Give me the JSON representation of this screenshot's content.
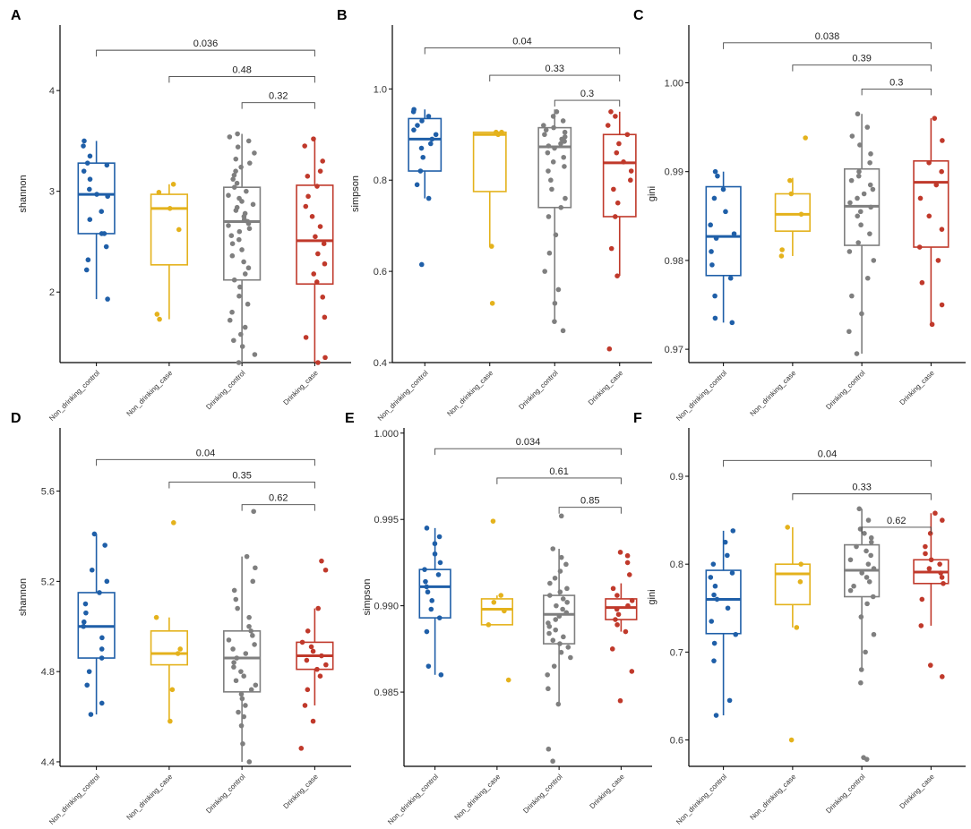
{
  "figure": {
    "group_colors": [
      "#1f5fa8",
      "#e4b21c",
      "#7f7f7f",
      "#c0392b"
    ]
  },
  "chart_data": [
    {
      "type": "box",
      "panel": "A",
      "ylabel": "shannon",
      "ylim": [
        1.3,
        4.65
      ],
      "yticks": [
        2,
        3,
        4
      ],
      "ytick_labels": [
        "2",
        "3",
        "4"
      ],
      "categories": [
        "Non_drinking_control",
        "Non_drinking_case",
        "Drinking_control",
        "Drinking_case"
      ],
      "boxes": [
        {
          "min": 1.93,
          "q1": 2.58,
          "median": 2.97,
          "q3": 3.28,
          "max": 3.5
        },
        {
          "min": 1.73,
          "q1": 2.27,
          "median": 2.83,
          "q3": 2.97,
          "max": 3.07
        },
        {
          "min": 1.3,
          "q1": 2.12,
          "median": 2.7,
          "q3": 3.04,
          "max": 3.57
        },
        {
          "min": 1.3,
          "q1": 2.08,
          "median": 2.51,
          "q3": 3.06,
          "max": 3.52
        }
      ],
      "points": [
        [
          1.93,
          2.22,
          2.32,
          2.45,
          2.58,
          2.58,
          2.72,
          2.8,
          2.95,
          2.97,
          3.02,
          3.12,
          3.2,
          3.26,
          3.28,
          3.35,
          3.45,
          3.5
        ],
        [
          1.73,
          1.78,
          2.62,
          2.83,
          2.99,
          3.07
        ],
        [
          1.3,
          1.38,
          1.46,
          1.52,
          1.58,
          1.65,
          1.72,
          1.8,
          1.88,
          1.96,
          2.05,
          2.12,
          2.18,
          2.24,
          2.3,
          2.36,
          2.42,
          2.48,
          2.52,
          2.56,
          2.6,
          2.63,
          2.66,
          2.68,
          2.7,
          2.72,
          2.75,
          2.78,
          2.81,
          2.84,
          2.87,
          2.9,
          2.93,
          2.96,
          3.0,
          3.04,
          3.08,
          3.12,
          3.16,
          3.2,
          3.24,
          3.28,
          3.32,
          3.38,
          3.44,
          3.5,
          3.54,
          3.57
        ],
        [
          1.3,
          1.35,
          1.55,
          1.75,
          1.95,
          2.1,
          2.18,
          2.28,
          2.38,
          2.48,
          2.55,
          2.65,
          2.75,
          2.85,
          2.95,
          3.05,
          3.15,
          3.2,
          3.3,
          3.45,
          3.52
        ]
      ],
      "comparisons": [
        {
          "from": 0,
          "to": 3,
          "label": "0.036",
          "y": 4.4
        },
        {
          "from": 1,
          "to": 3,
          "label": "0.48",
          "y": 4.14
        },
        {
          "from": 2,
          "to": 3,
          "label": "0.32",
          "y": 3.88
        }
      ]
    },
    {
      "type": "box",
      "panel": "B",
      "ylabel": "simpson",
      "ylim": [
        0.4,
        1.14
      ],
      "yticks": [
        0.4,
        0.6,
        0.8,
        1.0
      ],
      "ytick_labels": [
        "0.4",
        "0.6",
        "0.8",
        "1.0"
      ],
      "categories": [
        "Non_drinking_control",
        "Non_drinking_case",
        "Drinking_control",
        "Drinking_case"
      ],
      "boxes": [
        {
          "min": 0.76,
          "q1": 0.82,
          "median": 0.89,
          "q3": 0.935,
          "max": 0.955
        },
        {
          "min": 0.655,
          "q1": 0.775,
          "median": 0.9,
          "q3": 0.905,
          "max": 0.905
        },
        {
          "min": 0.49,
          "q1": 0.74,
          "median": 0.873,
          "q3": 0.915,
          "max": 0.955
        },
        {
          "min": 0.59,
          "q1": 0.72,
          "median": 0.838,
          "q3": 0.9,
          "max": 0.95
        }
      ],
      "points": [
        [
          0.615,
          0.76,
          0.79,
          0.82,
          0.85,
          0.87,
          0.88,
          0.89,
          0.9,
          0.91,
          0.92,
          0.93,
          0.94,
          0.95,
          0.955
        ],
        [
          0.53,
          0.655,
          0.9,
          0.905,
          0.905
        ],
        [
          0.47,
          0.49,
          0.53,
          0.56,
          0.6,
          0.64,
          0.68,
          0.72,
          0.74,
          0.76,
          0.78,
          0.8,
          0.82,
          0.83,
          0.84,
          0.85,
          0.86,
          0.87,
          0.875,
          0.88,
          0.885,
          0.89,
          0.895,
          0.9,
          0.905,
          0.91,
          0.915,
          0.92,
          0.93,
          0.94,
          0.95
        ],
        [
          0.43,
          0.59,
          0.65,
          0.72,
          0.75,
          0.78,
          0.8,
          0.82,
          0.84,
          0.86,
          0.88,
          0.9,
          0.92,
          0.94,
          0.95
        ]
      ],
      "comparisons": [
        {
          "from": 0,
          "to": 3,
          "label": "0.04",
          "y": 1.09
        },
        {
          "from": 1,
          "to": 3,
          "label": "0.33",
          "y": 1.03
        },
        {
          "from": 2,
          "to": 3,
          "label": "0.3",
          "y": 0.975
        }
      ]
    },
    {
      "type": "box",
      "panel": "C",
      "ylabel": "gini",
      "ylim": [
        0.9685,
        1.0065
      ],
      "yticks": [
        0.97,
        0.98,
        0.99,
        1.0
      ],
      "ytick_labels": [
        "0.97",
        "0.98",
        "0.99",
        "1.00"
      ],
      "categories": [
        "Non_drinking_control",
        "Non_drinking_case",
        "Drinking_control",
        "Drinking_case"
      ],
      "boxes": [
        {
          "min": 0.973,
          "q1": 0.9783,
          "median": 0.9827,
          "q3": 0.9883,
          "max": 0.99
        },
        {
          "min": 0.9805,
          "q1": 0.9833,
          "median": 0.9852,
          "q3": 0.9875,
          "max": 0.9893
        },
        {
          "min": 0.9695,
          "q1": 0.9817,
          "median": 0.9861,
          "q3": 0.9903,
          "max": 0.9965
        },
        {
          "min": 0.9728,
          "q1": 0.9815,
          "median": 0.9888,
          "q3": 0.9912,
          "max": 0.996
        }
      ],
      "points": [
        [
          0.973,
          0.9735,
          0.976,
          0.978,
          0.9795,
          0.981,
          0.9825,
          0.983,
          0.984,
          0.9855,
          0.987,
          0.988,
          0.9895,
          0.99
        ],
        [
          0.9805,
          0.9812,
          0.9852,
          0.9875,
          0.989,
          0.9938
        ],
        [
          0.9695,
          0.972,
          0.974,
          0.976,
          0.978,
          0.98,
          0.981,
          0.982,
          0.983,
          0.984,
          0.985,
          0.9855,
          0.986,
          0.9865,
          0.987,
          0.9875,
          0.988,
          0.9885,
          0.989,
          0.9895,
          0.99,
          0.991,
          0.992,
          0.993,
          0.994,
          0.995,
          0.9965
        ],
        [
          0.9728,
          0.975,
          0.9775,
          0.98,
          0.9815,
          0.9835,
          0.985,
          0.987,
          0.9885,
          0.99,
          0.991,
          0.9935,
          0.996
        ]
      ],
      "comparisons": [
        {
          "from": 0,
          "to": 3,
          "label": "0.038",
          "y": 1.0045
        },
        {
          "from": 1,
          "to": 3,
          "label": "0.39",
          "y": 1.002
        },
        {
          "from": 2,
          "to": 3,
          "label": "0.3",
          "y": 0.9993
        }
      ]
    },
    {
      "type": "box",
      "panel": "D",
      "ylabel": "shannon",
      "ylim": [
        4.38,
        5.88
      ],
      "yticks": [
        4.4,
        4.8,
        5.2,
        5.6
      ],
      "ytick_labels": [
        "4.4",
        "4.8",
        "5.2",
        "5.6"
      ],
      "categories": [
        "Non_drinking_control",
        "Non_drinking_case",
        "Drinking_control",
        "Drinking_case"
      ],
      "boxes": [
        {
          "min": 4.61,
          "q1": 4.86,
          "median": 5.0,
          "q3": 5.15,
          "max": 5.41
        },
        {
          "min": 4.58,
          "q1": 4.83,
          "median": 4.88,
          "q3": 4.98,
          "max": 5.04
        },
        {
          "min": 4.4,
          "q1": 4.71,
          "median": 4.86,
          "q3": 4.98,
          "max": 5.31
        },
        {
          "min": 4.65,
          "q1": 4.81,
          "median": 4.87,
          "q3": 4.93,
          "max": 5.08
        }
      ],
      "points": [
        [
          4.61,
          4.66,
          4.74,
          4.8,
          4.86,
          4.9,
          4.95,
          5.0,
          5.02,
          5.06,
          5.1,
          5.15,
          5.2,
          5.25,
          5.36,
          5.41
        ],
        [
          4.58,
          4.72,
          4.88,
          4.9,
          5.04,
          5.46
        ],
        [
          4.4,
          4.48,
          4.56,
          4.6,
          4.62,
          4.65,
          4.68,
          4.7,
          4.72,
          4.74,
          4.76,
          4.78,
          4.8,
          4.82,
          4.84,
          4.86,
          4.88,
          4.9,
          4.92,
          4.94,
          4.96,
          4.98,
          5.0,
          5.04,
          5.08,
          5.12,
          5.16,
          5.2,
          5.26,
          5.31,
          5.51
        ],
        [
          4.46,
          4.58,
          4.65,
          4.72,
          4.78,
          4.81,
          4.83,
          4.85,
          4.87,
          4.89,
          4.91,
          4.93,
          4.98,
          5.08,
          5.25,
          5.29
        ]
      ],
      "comparisons": [
        {
          "from": 0,
          "to": 3,
          "label": "0.04",
          "y": 5.74
        },
        {
          "from": 1,
          "to": 3,
          "label": "0.35",
          "y": 5.64
        },
        {
          "from": 2,
          "to": 3,
          "label": "0.62",
          "y": 5.54
        }
      ]
    },
    {
      "type": "box",
      "panel": "E",
      "ylabel": "simpson",
      "ylim": [
        0.9807,
        1.0003
      ],
      "yticks": [
        0.985,
        0.99,
        0.995,
        1.0
      ],
      "ytick_labels": [
        "0.985",
        "0.990",
        "0.995",
        "1.000"
      ],
      "categories": [
        "Non_drinking_control",
        "Non_drinking_case",
        "Drinking_control",
        "Drinking_case"
      ],
      "boxes": [
        {
          "min": 0.986,
          "q1": 0.9893,
          "median": 0.9911,
          "q3": 0.9921,
          "max": 0.9945
        },
        {
          "min": 0.9889,
          "q1": 0.9889,
          "median": 0.9898,
          "q3": 0.9904,
          "max": 0.9906
        },
        {
          "min": 0.9843,
          "q1": 0.9878,
          "median": 0.9895,
          "q3": 0.9906,
          "max": 0.9933
        },
        {
          "min": 0.9885,
          "q1": 0.9892,
          "median": 0.9899,
          "q3": 0.9904,
          "max": 0.9913
        }
      ],
      "points": [
        [
          0.986,
          0.9865,
          0.9885,
          0.9893,
          0.9898,
          0.9903,
          0.9908,
          0.9911,
          0.9914,
          0.9918,
          0.9921,
          0.9925,
          0.993,
          0.9936,
          0.994,
          0.9945
        ],
        [
          0.9857,
          0.9889,
          0.9897,
          0.9902,
          0.9906,
          0.9949
        ],
        [
          0.981,
          0.9817,
          0.9843,
          0.9852,
          0.986,
          0.9865,
          0.987,
          0.9873,
          0.9876,
          0.9878,
          0.988,
          0.9882,
          0.9884,
          0.9886,
          0.9888,
          0.989,
          0.9892,
          0.9894,
          0.9896,
          0.9898,
          0.99,
          0.9902,
          0.9904,
          0.9906,
          0.9908,
          0.991,
          0.9913,
          0.9916,
          0.992,
          0.9924,
          0.9928,
          0.9933,
          0.9952
        ],
        [
          0.9845,
          0.9862,
          0.9875,
          0.9885,
          0.9889,
          0.9892,
          0.9895,
          0.9898,
          0.99,
          0.9903,
          0.9906,
          0.991,
          0.9918,
          0.9925,
          0.9929,
          0.9931
        ]
      ],
      "comparisons": [
        {
          "from": 0,
          "to": 3,
          "label": "0.034",
          "y": 0.9991
        },
        {
          "from": 1,
          "to": 3,
          "label": "0.61",
          "y": 0.9974
        },
        {
          "from": 2,
          "to": 3,
          "label": "0.85",
          "y": 0.9957
        }
      ]
    },
    {
      "type": "box",
      "panel": "F",
      "ylabel": "gini",
      "ylim": [
        0.57,
        0.955
      ],
      "yticks": [
        0.6,
        0.7,
        0.8,
        0.9
      ],
      "ytick_labels": [
        "0.6",
        "0.7",
        "0.8",
        "0.9"
      ],
      "categories": [
        "Non_drinking_control",
        "Non_drinking_case",
        "Drinking_control",
        "Drinking_case"
      ],
      "boxes": [
        {
          "min": 0.628,
          "q1": 0.721,
          "median": 0.76,
          "q3": 0.793,
          "max": 0.838
        },
        {
          "min": 0.728,
          "q1": 0.754,
          "median": 0.789,
          "q3": 0.8,
          "max": 0.842
        },
        {
          "min": 0.68,
          "q1": 0.763,
          "median": 0.793,
          "q3": 0.822,
          "max": 0.863
        },
        {
          "min": 0.73,
          "q1": 0.778,
          "median": 0.791,
          "q3": 0.805,
          "max": 0.858
        }
      ],
      "points": [
        [
          0.628,
          0.645,
          0.69,
          0.71,
          0.72,
          0.735,
          0.75,
          0.76,
          0.765,
          0.775,
          0.785,
          0.79,
          0.8,
          0.81,
          0.825,
          0.838
        ],
        [
          0.6,
          0.728,
          0.78,
          0.8,
          0.842
        ],
        [
          0.578,
          0.58,
          0.665,
          0.68,
          0.7,
          0.72,
          0.74,
          0.755,
          0.763,
          0.77,
          0.775,
          0.78,
          0.785,
          0.79,
          0.795,
          0.8,
          0.805,
          0.81,
          0.815,
          0.82,
          0.825,
          0.83,
          0.835,
          0.84,
          0.85,
          0.863
        ],
        [
          0.672,
          0.685,
          0.73,
          0.76,
          0.778,
          0.785,
          0.79,
          0.795,
          0.8,
          0.805,
          0.812,
          0.82,
          0.835,
          0.85,
          0.858
        ]
      ],
      "comparisons": [
        {
          "from": 0,
          "to": 3,
          "label": "0.04",
          "y": 0.918
        },
        {
          "from": 1,
          "to": 3,
          "label": "0.33",
          "y": 0.88
        },
        {
          "from": 2,
          "to": 3,
          "label": "0.62",
          "y": 0.842
        }
      ]
    }
  ]
}
